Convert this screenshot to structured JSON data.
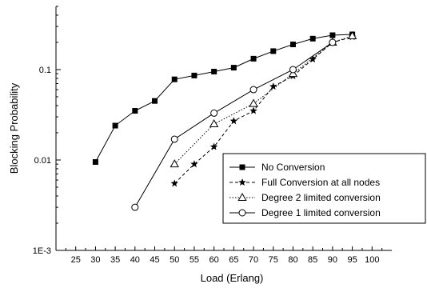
{
  "chart_data": {
    "type": "line",
    "xlabel": "Load (Erlang)",
    "ylabel": "Blocking Probability",
    "xlim": [
      20,
      105
    ],
    "ylim": [
      0.001,
      0.5
    ],
    "yscale": "log",
    "x_ticks": [
      25,
      30,
      35,
      40,
      45,
      50,
      55,
      60,
      65,
      70,
      75,
      80,
      85,
      90,
      95,
      100
    ],
    "y_ticks": [
      {
        "value": 0.001,
        "label": "1E-3"
      },
      {
        "value": 0.01,
        "label": "0.01"
      },
      {
        "value": 0.1,
        "label": "0.1"
      }
    ],
    "grid": false,
    "legend_position": "bottom-right",
    "series": [
      {
        "name": "No Conversion",
        "marker": "filled-square",
        "line_style": "solid",
        "x": [
          30,
          35,
          40,
          45,
          50,
          55,
          60,
          65,
          70,
          75,
          80,
          85,
          90,
          95
        ],
        "y": [
          0.0095,
          0.024,
          0.035,
          0.045,
          0.078,
          0.086,
          0.095,
          0.105,
          0.132,
          0.16,
          0.19,
          0.22,
          0.24,
          0.245
        ]
      },
      {
        "name": "Full Conversion at all nodes",
        "marker": "filled-star",
        "line_style": "dashed",
        "x": [
          50,
          55,
          60,
          65,
          70,
          75,
          80,
          85,
          90,
          95
        ],
        "y": [
          0.0055,
          0.009,
          0.014,
          0.027,
          0.035,
          0.065,
          0.085,
          0.13,
          0.2,
          0.23
        ]
      },
      {
        "name": "Degree 2 limited conversion",
        "marker": "open-triangle",
        "line_style": "dotted",
        "x": [
          50,
          60,
          70,
          80,
          90,
          95
        ],
        "y": [
          0.009,
          0.025,
          0.042,
          0.09,
          0.2,
          0.235
        ]
      },
      {
        "name": "Degree 1 limited conversion",
        "marker": "open-circle",
        "line_style": "solid",
        "x": [
          40,
          50,
          60,
          70,
          80,
          90
        ],
        "y": [
          0.003,
          0.017,
          0.033,
          0.06,
          0.1,
          0.2
        ]
      }
    ]
  }
}
